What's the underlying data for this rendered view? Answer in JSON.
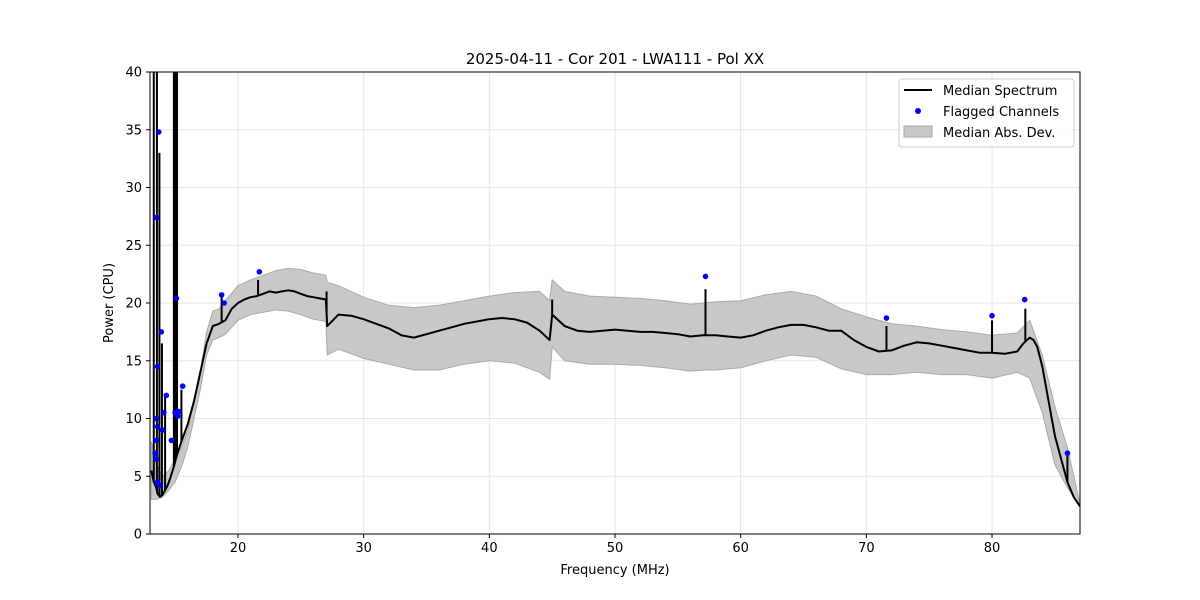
{
  "chart_data": {
    "type": "line",
    "title": "2025-04-11 - Cor 201 - LWA111 - Pol XX",
    "xlabel": "Frequency (MHz)",
    "ylabel": "Power (CPU)",
    "xlim": [
      13.0,
      87.0
    ],
    "ylim": [
      0,
      40
    ],
    "xticks": [
      20,
      30,
      40,
      50,
      60,
      70,
      80
    ],
    "yticks": [
      0,
      5,
      10,
      15,
      20,
      25,
      30,
      35,
      40
    ],
    "grid": true,
    "legend": {
      "position": "top-right",
      "entries": [
        "Median Spectrum",
        "Flagged Channels",
        "Median Abs. Dev."
      ]
    },
    "series": [
      {
        "name": "Median Spectrum",
        "color": "#000000",
        "x": [
          13.1,
          13.3,
          13.5,
          13.6,
          13.8,
          14.0,
          14.2,
          14.4,
          14.6,
          14.8,
          14.95,
          15.05,
          15.2,
          15.5,
          16.0,
          16.5,
          17.0,
          17.5,
          18.0,
          18.5,
          19.0,
          19.5,
          20.0,
          20.5,
          21.0,
          21.5,
          22.0,
          22.5,
          23.0,
          23.5,
          24.0,
          24.5,
          25.0,
          25.5,
          26.0,
          26.5,
          27.0,
          27.1,
          28.0,
          29.0,
          30.0,
          31.0,
          32.0,
          33.0,
          34.0,
          35.0,
          36.0,
          37.0,
          38.0,
          39.0,
          40.0,
          41.0,
          42.0,
          43.0,
          44.0,
          44.8,
          45.0,
          46.0,
          47.0,
          48.0,
          49.0,
          50.0,
          51.0,
          52.0,
          53.0,
          54.0,
          55.0,
          56.0,
          57.0,
          58.0,
          59.0,
          60.0,
          61.0,
          62.0,
          63.0,
          64.0,
          65.0,
          66.0,
          67.0,
          68.0,
          69.0,
          70.0,
          71.0,
          72.0,
          73.0,
          74.0,
          75.0,
          76.0,
          77.0,
          78.0,
          79.0,
          80.0,
          81.0,
          82.0,
          82.5,
          83.0,
          83.3,
          83.6,
          84.0,
          84.5,
          85.0,
          85.5,
          86.0,
          86.5,
          87.0
        ],
        "y": [
          5.5,
          4.5,
          4.0,
          3.5,
          3.2,
          3.4,
          3.8,
          4.2,
          4.8,
          5.5,
          6.0,
          6.5,
          7.0,
          8.0,
          9.5,
          11.5,
          14.0,
          16.5,
          18.0,
          18.2,
          18.5,
          19.5,
          20.0,
          20.3,
          20.5,
          20.6,
          20.8,
          21.0,
          20.9,
          21.0,
          21.1,
          21.0,
          20.8,
          20.6,
          20.5,
          20.4,
          20.3,
          18.0,
          19.0,
          18.9,
          18.6,
          18.2,
          17.8,
          17.2,
          17.0,
          17.3,
          17.6,
          17.9,
          18.2,
          18.4,
          18.6,
          18.7,
          18.6,
          18.3,
          17.6,
          16.8,
          19.0,
          18.0,
          17.6,
          17.5,
          17.6,
          17.7,
          17.6,
          17.5,
          17.5,
          17.4,
          17.3,
          17.1,
          17.2,
          17.2,
          17.1,
          17.0,
          17.2,
          17.6,
          17.9,
          18.1,
          18.1,
          17.9,
          17.6,
          17.6,
          16.8,
          16.2,
          15.8,
          15.9,
          16.3,
          16.6,
          16.5,
          16.3,
          16.1,
          15.9,
          15.7,
          15.7,
          15.6,
          15.8,
          16.5,
          17.0,
          16.8,
          16.2,
          14.5,
          11.5,
          8.5,
          6.5,
          4.5,
          3.2,
          2.4
        ]
      },
      {
        "name": "Median Abs. Dev.",
        "type": "band",
        "color": "#c8c8c8",
        "x": [
          13.1,
          13.5,
          14.0,
          14.5,
          15.0,
          15.5,
          16.0,
          16.5,
          17.0,
          17.5,
          18.0,
          18.5,
          19.0,
          20.0,
          21.0,
          22.0,
          23.0,
          24.0,
          25.0,
          26.0,
          27.0,
          27.1,
          28.0,
          29.0,
          30.0,
          32.0,
          34.0,
          36.0,
          38.0,
          40.0,
          42.0,
          44.0,
          44.8,
          45.0,
          46.0,
          48.0,
          50.0,
          52.0,
          54.0,
          56.0,
          57.0,
          58.0,
          60.0,
          62.0,
          64.0,
          66.0,
          68.0,
          70.0,
          72.0,
          74.0,
          76.0,
          78.0,
          80.0,
          82.0,
          83.0,
          84.0,
          85.0,
          86.0,
          87.0
        ],
        "lower": [
          3.0,
          3.0,
          3.2,
          3.8,
          4.5,
          5.8,
          7.5,
          10.0,
          12.5,
          15.5,
          16.8,
          17.0,
          17.3,
          18.5,
          19.0,
          19.2,
          19.4,
          19.3,
          19.0,
          18.6,
          18.4,
          15.5,
          16.0,
          15.6,
          15.2,
          14.7,
          14.2,
          14.2,
          14.7,
          15.0,
          14.8,
          14.0,
          13.4,
          16.2,
          15.0,
          14.7,
          14.7,
          14.6,
          14.4,
          14.1,
          14.2,
          14.2,
          14.4,
          15.0,
          15.5,
          15.3,
          14.3,
          13.8,
          13.8,
          14.0,
          13.8,
          13.8,
          13.5,
          14.0,
          13.5,
          10.5,
          6.0,
          4.0,
          2.4
        ],
        "upper": [
          8.0,
          6.0,
          5.0,
          5.5,
          6.5,
          7.5,
          9.0,
          11.5,
          14.0,
          17.5,
          19.3,
          19.5,
          20.2,
          21.5,
          22.0,
          22.4,
          22.8,
          23.0,
          22.9,
          22.6,
          22.4,
          21.8,
          21.5,
          21.0,
          20.5,
          19.8,
          19.6,
          19.8,
          20.2,
          20.6,
          20.9,
          21.0,
          20.2,
          22.0,
          21.0,
          20.6,
          20.5,
          20.4,
          20.2,
          19.9,
          20.0,
          20.1,
          20.2,
          20.7,
          21.0,
          20.6,
          19.5,
          18.8,
          18.2,
          18.0,
          17.7,
          17.5,
          17.2,
          17.4,
          18.5,
          15.5,
          11.0,
          7.5,
          2.6
        ]
      }
    ],
    "spikes": [
      {
        "x": 13.3,
        "y": 40.0
      },
      {
        "x": 13.55,
        "y": 40.0
      },
      {
        "x": 13.75,
        "y": 33.0
      },
      {
        "x": 13.95,
        "y": 16.5
      },
      {
        "x": 14.2,
        "y": 12.0
      },
      {
        "x": 14.9,
        "y": 40.0
      },
      {
        "x": 15.0,
        "y": 40.0
      },
      {
        "x": 15.15,
        "y": 40.0
      },
      {
        "x": 15.5,
        "y": 12.5
      },
      {
        "x": 18.7,
        "y": 20.5
      },
      {
        "x": 21.6,
        "y": 22.0
      },
      {
        "x": 27.05,
        "y": 21.0
      },
      {
        "x": 45.0,
        "y": 20.3
      },
      {
        "x": 57.2,
        "y": 21.2
      },
      {
        "x": 71.6,
        "y": 18.0
      },
      {
        "x": 80.0,
        "y": 18.5
      },
      {
        "x": 82.65,
        "y": 19.5
      },
      {
        "x": 86.0,
        "y": 6.8
      }
    ],
    "flagged_channels": [
      {
        "x": 13.5,
        "y": 27.4
      },
      {
        "x": 13.7,
        "y": 34.8
      },
      {
        "x": 13.9,
        "y": 17.5
      },
      {
        "x": 13.6,
        "y": 14.5
      },
      {
        "x": 13.5,
        "y": 10.0
      },
      {
        "x": 13.6,
        "y": 9.3
      },
      {
        "x": 13.5,
        "y": 8.1
      },
      {
        "x": 13.4,
        "y": 7.0
      },
      {
        "x": 13.5,
        "y": 6.5
      },
      {
        "x": 13.6,
        "y": 4.5
      },
      {
        "x": 13.8,
        "y": 4.2
      },
      {
        "x": 14.1,
        "y": 10.5
      },
      {
        "x": 14.3,
        "y": 12.0
      },
      {
        "x": 14.0,
        "y": 9.0
      },
      {
        "x": 14.7,
        "y": 8.1
      },
      {
        "x": 15.1,
        "y": 20.4
      },
      {
        "x": 15.0,
        "y": 10.5
      },
      {
        "x": 15.2,
        "y": 10.2
      },
      {
        "x": 15.3,
        "y": 10.6
      },
      {
        "x": 15.6,
        "y": 12.8
      },
      {
        "x": 18.7,
        "y": 20.7
      },
      {
        "x": 18.9,
        "y": 20.0
      },
      {
        "x": 21.7,
        "y": 22.7
      },
      {
        "x": 57.2,
        "y": 22.3
      },
      {
        "x": 71.6,
        "y": 18.7
      },
      {
        "x": 80.0,
        "y": 18.9
      },
      {
        "x": 82.6,
        "y": 20.3
      },
      {
        "x": 86.0,
        "y": 7.0
      }
    ]
  },
  "style": {
    "line_color": "#000000",
    "flag_color": "#0000ff",
    "band_fill": "#c8c8c8",
    "band_edge": "#aaaaaa",
    "grid_color": "#e6e6e6"
  }
}
